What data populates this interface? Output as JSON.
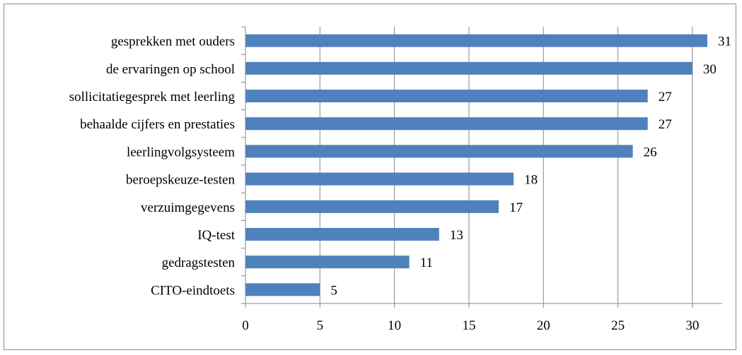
{
  "chart_data": {
    "type": "bar",
    "orientation": "horizontal",
    "categories": [
      "gesprekken met ouders",
      "de ervaringen op school",
      "sollicitatiegesprek met leerling",
      "behaalde cijfers en prestaties",
      "leerlingvolgsysteem",
      "beroepskeuze-testen",
      "verzuimgegevens",
      "IQ-test",
      "gedragstesten",
      "CITO-eindtoets"
    ],
    "values": [
      31,
      30,
      27,
      27,
      26,
      18,
      17,
      13,
      11,
      5
    ],
    "xlim": [
      0,
      32
    ],
    "xticks": [
      0,
      5,
      10,
      15,
      20,
      25,
      30
    ],
    "title": "",
    "xlabel": "",
    "ylabel": "",
    "grid": "vertical",
    "legend": "none",
    "data_labels": true,
    "colors": {
      "bar": "#4f81bd",
      "grid": "#878787",
      "axis": "#878787",
      "frame": "#8c8c8c"
    }
  }
}
